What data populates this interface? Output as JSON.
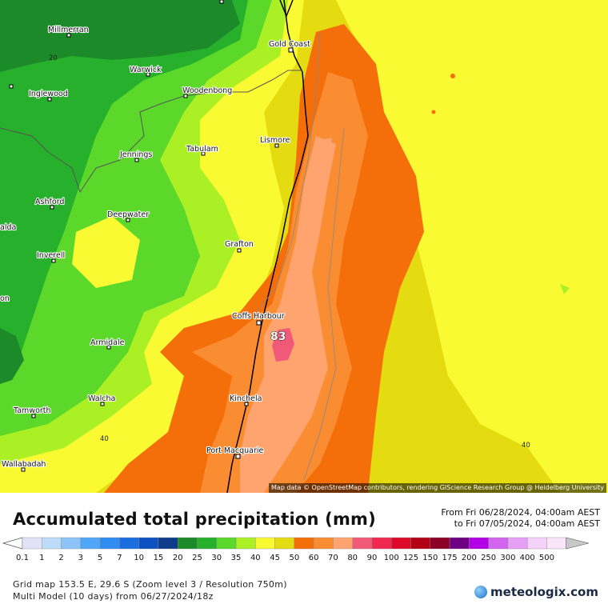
{
  "map": {
    "attribution": "Map data © OpenStreetMap contributors, rendering GIScience Research Group @ Heidelberg University",
    "places": [
      {
        "name": "Millmerran"
      },
      {
        "name": "Warwick"
      },
      {
        "name": "Inglewood"
      },
      {
        "name": "Woodenbong"
      },
      {
        "name": "Gold Coast"
      },
      {
        "name": "Lismore"
      },
      {
        "name": "Jennings"
      },
      {
        "name": "Tabulam"
      },
      {
        "name": "Ashford"
      },
      {
        "name": "Deepwater"
      },
      {
        "name": "Grafton"
      },
      {
        "name": "Inverell"
      },
      {
        "name": "Coffs Harbour"
      },
      {
        "name": "Armidale"
      },
      {
        "name": "Walcha"
      },
      {
        "name": "Kinchela"
      },
      {
        "name": "Tamworth"
      },
      {
        "name": "Port Macquarie"
      },
      {
        "name": "Wallabadah"
      },
      {
        "name": "alda"
      },
      {
        "name": "on"
      }
    ],
    "contour_labels": [
      "20",
      "40",
      "40"
    ],
    "max_value": "83",
    "colors": {
      "dark_green": "#1c8a28",
      "green": "#26b02c",
      "light_green": "#5bd82a",
      "lime": "#aaf024",
      "yellow": "#fafa32",
      "dark_yellow": "#e4dc10",
      "orange_dark": "#f46e0a",
      "orange": "#fa8c32",
      "orange_light": "#ffa46e",
      "pink": "#f05a78",
      "coast_line": "#000000"
    }
  },
  "footer": {
    "title": "Accumulated total precipitation (mm)",
    "period_from": "From Fri 06/28/2024, 04:00am AEST",
    "period_to": "to Fri 07/05/2024, 04:00am AEST",
    "grid_info": "Grid map 153.5 E, 29.6 S (Zoom level 3 / Resolution 750m)",
    "model_info": "Multi Model (10 days)  from  06/27/2024/18z",
    "logo": "meteologix.com"
  },
  "legend": {
    "items": [
      {
        "label": "0.1",
        "color": "#e2e2f6"
      },
      {
        "label": "1",
        "color": "#bcdcfa"
      },
      {
        "label": "2",
        "color": "#8cc4fa"
      },
      {
        "label": "3",
        "color": "#50a6f8"
      },
      {
        "label": "5",
        "color": "#2e8cf2"
      },
      {
        "label": "7",
        "color": "#1a6ee0"
      },
      {
        "label": "10",
        "color": "#0d52c2"
      },
      {
        "label": "15",
        "color": "#0e3b8a"
      },
      {
        "label": "20",
        "color": "#1c8a28"
      },
      {
        "label": "25",
        "color": "#26b02c"
      },
      {
        "label": "30",
        "color": "#5bd82a"
      },
      {
        "label": "35",
        "color": "#aaf024"
      },
      {
        "label": "40",
        "color": "#fafa32"
      },
      {
        "label": "45",
        "color": "#e4dc10"
      },
      {
        "label": "50",
        "color": "#f46e0a"
      },
      {
        "label": "60",
        "color": "#fa8c32"
      },
      {
        "label": "70",
        "color": "#ffa46e"
      },
      {
        "label": "80",
        "color": "#f05a78"
      },
      {
        "label": "90",
        "color": "#f02850"
      },
      {
        "label": "100",
        "color": "#dc0a28"
      },
      {
        "label": "125",
        "color": "#b40014"
      },
      {
        "label": "150",
        "color": "#8c0028"
      },
      {
        "label": "175",
        "color": "#6e0082"
      },
      {
        "label": "200",
        "color": "#b400e6"
      },
      {
        "label": "250",
        "color": "#d264f0"
      },
      {
        "label": "300",
        "color": "#e6a0f5"
      },
      {
        "label": "400",
        "color": "#f5d2fa"
      },
      {
        "label": "500",
        "color": "#fae6fa"
      },
      {
        "label": "",
        "color": "#c8c8c8"
      }
    ]
  }
}
